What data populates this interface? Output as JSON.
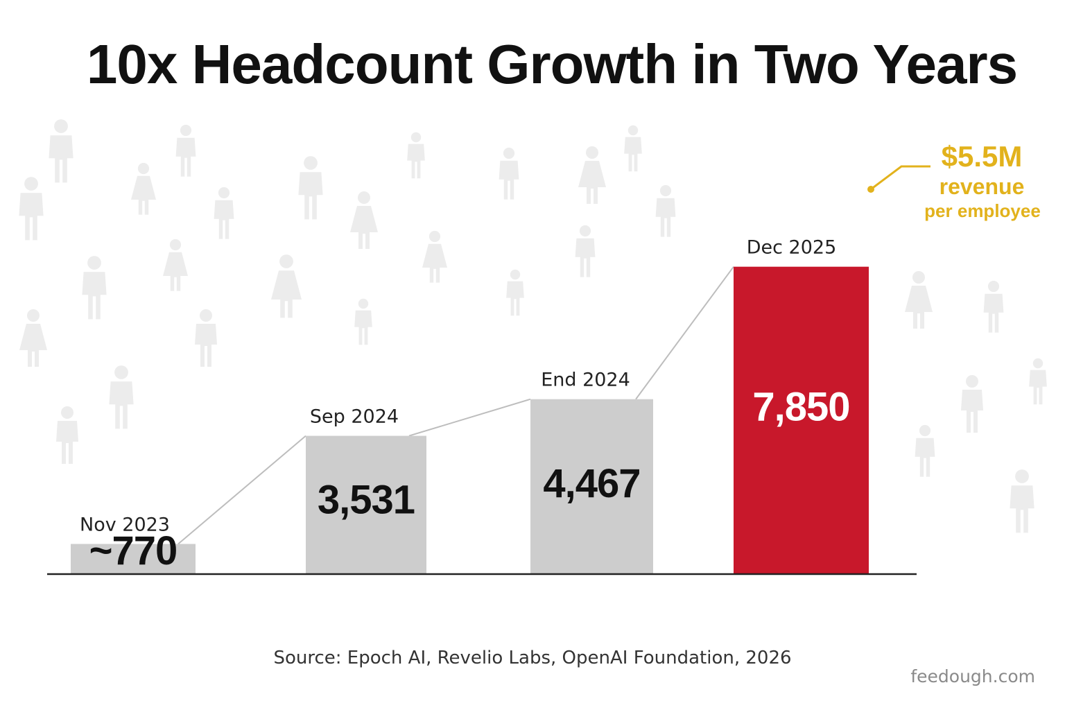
{
  "title": "10x Headcount Growth in Two Years",
  "chart_data": {
    "type": "bar",
    "categories": [
      "Nov 2023",
      "Sep 2024",
      "End 2024",
      "Dec 2025"
    ],
    "values": [
      770,
      3531,
      4467,
      7850
    ],
    "value_labels": [
      "~770",
      "3,531",
      "4,467",
      "7,850"
    ],
    "ylim": [
      0,
      9420
    ],
    "grid": false,
    "legend": "none",
    "highlight_index": 3
  },
  "callout": {
    "amount": "$5.5M",
    "line2": "revenue",
    "line3": "per employee"
  },
  "source": "Source:  Epoch AI, Revelio Labs, OpenAI Foundation, 2026",
  "credit": "feedough.com",
  "colors": {
    "bar_default": "#cdcdcd",
    "bar_highlight": "#c8182b",
    "value_dark": "#111111",
    "value_light": "#ffffff",
    "callout": "#e2b21c",
    "connector": "#bdbdbd",
    "baseline": "#222222",
    "title": "#111111",
    "source": "#333333",
    "credit": "#8a8a8a",
    "figure_watermark": "#ececec"
  },
  "background_icon": "person-silhouette-icon"
}
